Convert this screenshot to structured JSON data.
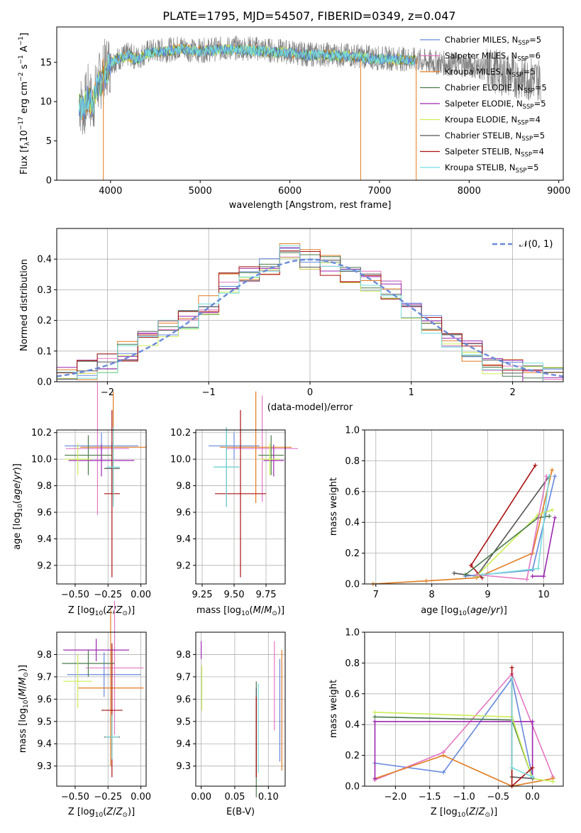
{
  "title": "PLATE=1795, MJD=54507, FIBERID=0349, z=0.047",
  "colors": [
    "#6688dd",
    "#e377c2",
    "#e07b20",
    "#4a7a4a",
    "#9b27af",
    "#ccee55",
    "#555555",
    "#aa1111",
    "#77dddd"
  ],
  "legend": [
    {
      "name": "Chabrier MILES, N",
      "sub": "SSP",
      "val": "=5"
    },
    {
      "name": "Salpeter MILES, N",
      "sub": "SSP",
      "val": "=6"
    },
    {
      "name": "Kroupa MILES, N",
      "sub": "SSP",
      "val": "=5"
    },
    {
      "name": "Chabrier ELODIE, N",
      "sub": "SSP",
      "val": "=5"
    },
    {
      "name": "Salpeter ELODIE, N",
      "sub": "SSP",
      "val": "=5"
    },
    {
      "name": "Kroupa ELODIE, N",
      "sub": "SSP",
      "val": "=4"
    },
    {
      "name": "Chabrier STELIB, N",
      "sub": "SSP",
      "val": "=5"
    },
    {
      "name": "Salpeter STELIB, N",
      "sub": "SSP",
      "val": "=4"
    },
    {
      "name": "Kroupa STELIB, N",
      "sub": "SSP",
      "val": "=5"
    }
  ],
  "chart_data": [
    {
      "id": "spectrum",
      "type": "line",
      "xlabel": "wavelength [Angstrom, rest frame]",
      "ylabel": "Flux [f_λ10^-17 erg cm^-2 s^-1 A^-1]",
      "xlim": [
        3400,
        9050
      ],
      "ylim": [
        0,
        19.5
      ],
      "xticks": [
        "4000",
        "5000",
        "6000",
        "7000",
        "8000",
        "9000"
      ],
      "yticks": [
        "0",
        "5",
        "10",
        "15"
      ],
      "series": [
        {
          "name": "data",
          "color": "#808080",
          "x": [
            3650,
            3700,
            3750,
            3800,
            3850,
            3900,
            3950,
            4000,
            4100,
            4200,
            4300,
            4400,
            4500,
            4600,
            4700,
            4800,
            4900,
            5000,
            5200,
            5400,
            5600,
            5800,
            6000,
            6200,
            6400,
            6600,
            6800,
            7000,
            7200,
            7400,
            7600,
            7800,
            8000,
            8200,
            8400,
            8600,
            8800
          ],
          "y": [
            10,
            9,
            11,
            9.5,
            12,
            13,
            14.5,
            15,
            15.5,
            16,
            15.5,
            16.3,
            16.5,
            16.5,
            16.7,
            17,
            16.5,
            16.5,
            16.7,
            16.8,
            16.8,
            16.5,
            16.3,
            16.0,
            16.0,
            15.9,
            15.8,
            15.5,
            15.5,
            15.3,
            15.0,
            14.8,
            14.6,
            14.2,
            13.5,
            13.0,
            12.8
          ]
        },
        {
          "name": "model",
          "color": "#77dddd",
          "x": [
            3650,
            3700,
            3750,
            3800,
            3850,
            3900,
            3950,
            4000,
            4100,
            4200,
            4300,
            4400,
            4500,
            4600,
            4700,
            4800,
            4900,
            5000,
            5200,
            5400,
            5600,
            5800,
            6000,
            6200,
            6400,
            6600,
            6800,
            7000,
            7200,
            7400
          ],
          "y": [
            9.5,
            9,
            10.5,
            9.5,
            12,
            12.5,
            13.5,
            15,
            15.5,
            15.8,
            15.3,
            16.2,
            16.3,
            16.4,
            16.6,
            16.8,
            16.4,
            16.4,
            16.6,
            16.6,
            16.5,
            16.3,
            16.2,
            15.9,
            15.9,
            15.8,
            15.6,
            15.4,
            15.4,
            15.2
          ]
        }
      ]
    },
    {
      "id": "residuals",
      "type": "area",
      "xlabel": "(data-model)/error",
      "ylabel": "Normed distribution",
      "xlim": [
        -2.5,
        2.5
      ],
      "ylim": [
        0,
        0.5
      ],
      "xticks": [
        "-2",
        "-1",
        "0",
        "1",
        "2"
      ],
      "yticks": [
        "0.0",
        "0.1",
        "0.2",
        "0.3",
        "0.4"
      ],
      "legend": "𝒩(0, 1)",
      "bins": [
        -2.5,
        -2.3,
        -2.1,
        -1.9,
        -1.7,
        -1.5,
        -1.3,
        -1.1,
        -0.9,
        -0.7,
        -0.5,
        -0.3,
        -0.1,
        0.1,
        0.3,
        0.5,
        0.7,
        0.9,
        1.1,
        1.3,
        1.5,
        1.7,
        1.9,
        2.1,
        2.3,
        2.5
      ],
      "hist": [
        0.02,
        0.04,
        0.06,
        0.1,
        0.14,
        0.17,
        0.2,
        0.25,
        0.32,
        0.36,
        0.37,
        0.42,
        0.4,
        0.38,
        0.35,
        0.33,
        0.3,
        0.24,
        0.19,
        0.14,
        0.1,
        0.06,
        0.04,
        0.03,
        0.02
      ]
    },
    {
      "id": "age-vs-Z",
      "type": "scatter",
      "xlabel": "Z [log10(Z/Z⊙)]",
      "ylabel": "age [log10(age/yr)]",
      "xlim": [
        -0.64,
        0.04
      ],
      "ylim": [
        9.06,
        10.22
      ],
      "xticks": [
        "-0.50",
        "-0.25",
        "0.00"
      ],
      "yticks": [
        "9.2",
        "9.4",
        "9.6",
        "9.8",
        "10.0",
        "10.2"
      ],
      "points": [
        {
          "x": -0.3,
          "y": 10.1,
          "xerr": 0.28,
          "yerr": 0.1,
          "c": 0
        },
        {
          "x": -0.33,
          "y": 10.08,
          "xerr": 0.24,
          "yerr": 0.5,
          "c": 1
        },
        {
          "x": -0.21,
          "y": 10.09,
          "xerr": 0.25,
          "yerr": 0.42,
          "c": 2
        },
        {
          "x": -0.4,
          "y": 10.03,
          "xerr": 0.18,
          "yerr": 0.15,
          "c": 3
        },
        {
          "x": -0.3,
          "y": 9.99,
          "xerr": 0.25,
          "yerr": 0.12,
          "c": 4
        },
        {
          "x": -0.48,
          "y": 10.0,
          "xerr": 0.1,
          "yerr": 0.12,
          "c": 5
        },
        {
          "x": -0.22,
          "y": 9.93,
          "xerr": 0.06,
          "yerr": 0.2,
          "c": 6
        },
        {
          "x": -0.22,
          "y": 9.74,
          "xerr": 0.06,
          "yerr": 0.63,
          "c": 7
        },
        {
          "x": -0.21,
          "y": 9.94,
          "xerr": 0.05,
          "yerr": 0.3,
          "c": 8
        }
      ]
    },
    {
      "id": "age-vs-mass",
      "type": "scatter",
      "xlabel": "mass [log10(M/M⊙)]",
      "ylabel": "",
      "xlim": [
        9.2,
        9.9
      ],
      "ylim": [
        9.06,
        10.22
      ],
      "xticks": [
        "9.25",
        "9.50",
        "9.75"
      ],
      "yticks": [
        "9.2",
        "9.4",
        "9.6",
        "9.8",
        "10.0",
        "10.2"
      ],
      "points": [
        {
          "x": 9.5,
          "y": 10.1,
          "xerr": 0.2,
          "yerr": 0.1,
          "c": 0
        },
        {
          "x": 9.72,
          "y": 10.08,
          "xerr": 0.28,
          "yerr": 0.4,
          "c": 1
        },
        {
          "x": 9.67,
          "y": 10.09,
          "xerr": 0.28,
          "yerr": 0.42,
          "c": 2
        },
        {
          "x": 9.79,
          "y": 10.03,
          "xerr": 0.1,
          "yerr": 0.15,
          "c": 3
        },
        {
          "x": 9.81,
          "y": 9.99,
          "xerr": 0.08,
          "yerr": 0.12,
          "c": 4
        },
        {
          "x": 9.78,
          "y": 10.0,
          "xerr": 0.08,
          "yerr": 0.12,
          "c": 5
        },
        {
          "x": 9.44,
          "y": 9.94,
          "xerr": 0.1,
          "yerr": 0.3,
          "c": 6
        },
        {
          "x": 9.55,
          "y": 9.74,
          "xerr": 0.2,
          "yerr": 0.63,
          "c": 7
        },
        {
          "x": 9.44,
          "y": 9.94,
          "xerr": 0.1,
          "yerr": 0.3,
          "c": 8
        }
      ]
    },
    {
      "id": "massweight-vs-age",
      "type": "line",
      "xlabel": "age [log10(age/yr)]",
      "ylabel": "mass weight",
      "xlim": [
        6.8,
        10.35
      ],
      "ylim": [
        0,
        1
      ],
      "xticks": [
        "7",
        "8",
        "9",
        "10"
      ],
      "yticks": [
        "0.0",
        "0.2",
        "0.4",
        "0.6",
        "0.8",
        "1.0"
      ],
      "series": [
        {
          "c": 2,
          "x": [
            6.95,
            7.9,
            8.8,
            9.8,
            10.15
          ],
          "y": [
            0.0,
            0.02,
            0.04,
            0.2,
            0.74
          ]
        },
        {
          "c": 7,
          "x": [
            8.9,
            8.7,
            9.85
          ],
          "y": [
            0.04,
            0.12,
            0.77
          ]
        },
        {
          "c": 6,
          "x": [
            8.4,
            8.8,
            10.1
          ],
          "y": [
            0.07,
            0.05,
            0.7
          ]
        },
        {
          "c": 0,
          "x": [
            8.6,
            9.8,
            10.2
          ],
          "y": [
            0.05,
            0.09,
            0.7
          ]
        },
        {
          "c": 5,
          "x": [
            8.8,
            9.9,
            10.15
          ],
          "y": [
            0.05,
            0.45,
            0.48
          ]
        },
        {
          "c": 3,
          "x": [
            8.6,
            9.9,
            10.1
          ],
          "y": [
            0.06,
            0.43,
            0.44
          ]
        },
        {
          "c": 4,
          "x": [
            9.8,
            10.0,
            10.2
          ],
          "y": [
            0.05,
            0.05,
            0.43
          ]
        },
        {
          "c": 1,
          "x": [
            8.8,
            9.7,
            10.05
          ],
          "y": [
            0.06,
            0.03,
            0.7
          ]
        },
        {
          "c": 8,
          "x": [
            8.9,
            9.9,
            10.1
          ],
          "y": [
            0.06,
            0.1,
            0.7
          ]
        }
      ]
    },
    {
      "id": "mass-vs-Z",
      "type": "scatter",
      "xlabel": "Z [log10(Z/Z⊙)]",
      "ylabel": "mass [log10(M/M⊙)]",
      "xlim": [
        -0.64,
        0.04
      ],
      "ylim": [
        9.21,
        9.9
      ],
      "xticks": [
        "-0.50",
        "-0.25",
        "0.00"
      ],
      "yticks": [
        "9.3",
        "9.4",
        "9.5",
        "9.6",
        "9.7",
        "9.8"
      ],
      "points": [
        {
          "x": -0.28,
          "y": 9.71,
          "xerr": 0.28,
          "yerr": 0.1,
          "c": 0
        },
        {
          "x": -0.2,
          "y": 9.74,
          "xerr": 0.22,
          "yerr": 0.3,
          "c": 1
        },
        {
          "x": -0.23,
          "y": 9.65,
          "xerr": 0.25,
          "yerr": 0.35,
          "c": 2
        },
        {
          "x": -0.4,
          "y": 9.76,
          "xerr": 0.2,
          "yerr": 0.06,
          "c": 3
        },
        {
          "x": -0.34,
          "y": 9.82,
          "xerr": 0.25,
          "yerr": 0.05,
          "c": 4
        },
        {
          "x": -0.48,
          "y": 9.68,
          "xerr": 0.11,
          "yerr": 0.12,
          "c": 5
        },
        {
          "x": -0.22,
          "y": 9.43,
          "xerr": 0.06,
          "yerr": 0.1,
          "c": 6
        },
        {
          "x": -0.22,
          "y": 9.55,
          "xerr": 0.08,
          "yerr": 0.3,
          "c": 7
        },
        {
          "x": -0.22,
          "y": 9.43,
          "xerr": 0.05,
          "yerr": 0.1,
          "c": 8
        }
      ]
    },
    {
      "id": "mass-vs-EBV",
      "type": "scatter",
      "xlabel": "E(B-V)",
      "ylabel": "",
      "xlim": [
        -0.008,
        0.125
      ],
      "ylim": [
        9.21,
        9.9
      ],
      "xticks": [
        "0.00",
        "0.05",
        "0.10"
      ],
      "yticks": [
        "9.3",
        "9.4",
        "9.5",
        "9.6",
        "9.7",
        "9.8"
      ],
      "points": [
        {
          "x": 0.117,
          "y": 9.55,
          "yerr": 0.23,
          "c": 0
        },
        {
          "x": 0.109,
          "y": 9.66,
          "yerr": 0.2,
          "c": 1
        },
        {
          "x": 0.12,
          "y": 9.55,
          "yerr": 0.27,
          "c": 2
        },
        {
          "x": 0.082,
          "y": 9.42,
          "yerr": 0.26,
          "c": 3
        },
        {
          "x": 0.0,
          "y": 9.82,
          "yerr": 0.04,
          "c": 4
        },
        {
          "x": 0.001,
          "y": 9.65,
          "yerr": 0.1,
          "c": 5
        },
        {
          "x": 0.082,
          "y": 9.45,
          "yerr": 0.2,
          "c": 6
        },
        {
          "x": 0.082,
          "y": 9.43,
          "yerr": 0.18,
          "c": 7
        },
        {
          "x": 0.085,
          "y": 9.47,
          "yerr": 0.2,
          "c": 8
        }
      ]
    },
    {
      "id": "massweight-vs-Z",
      "type": "line",
      "xlabel": "Z [log10(Z/Z⊙)]",
      "ylabel": "mass weight",
      "xlim": [
        -2.45,
        0.45
      ],
      "ylim": [
        0,
        1
      ],
      "xticks": [
        "-2.0",
        "-1.5",
        "-1.0",
        "-0.5",
        "0.0"
      ],
      "yticks": [
        "0.0",
        "0.2",
        "0.4",
        "0.6",
        "0.8",
        "1.0"
      ],
      "series": [
        {
          "c": 0,
          "x": [
            -2.3,
            -1.3,
            -0.3,
            0.0
          ],
          "y": [
            0.15,
            0.09,
            0.7,
            0.06
          ]
        },
        {
          "c": 1,
          "x": [
            -2.3,
            -1.3,
            -0.3,
            0.3
          ],
          "y": [
            0.04,
            0.22,
            0.73,
            0.06
          ]
        },
        {
          "c": 2,
          "x": [
            -2.3,
            -1.3,
            -0.3,
            0.3
          ],
          "y": [
            0.05,
            0.2,
            0.0,
            0.05
          ]
        },
        {
          "c": 3,
          "x": [
            -2.3,
            -0.3,
            0.0
          ],
          "y": [
            0.45,
            0.43,
            0.05
          ]
        },
        {
          "c": 4,
          "x": [
            -2.3,
            -2.3,
            0.0,
            0.0
          ],
          "y": [
            0.05,
            0.42,
            0.42,
            0.05
          ]
        },
        {
          "c": 5,
          "x": [
            -2.3,
            -0.3,
            0.0,
            0.3
          ],
          "y": [
            0.48,
            0.45,
            0.05,
            0.03
          ]
        },
        {
          "c": 6,
          "x": [
            -0.3,
            -0.3,
            0.0
          ],
          "y": [
            0.7,
            0.06,
            0.05
          ]
        },
        {
          "c": 7,
          "x": [
            -0.3,
            -0.3,
            0.0
          ],
          "y": [
            0.77,
            0.0,
            0.12
          ]
        },
        {
          "c": 8,
          "x": [
            -0.3,
            -0.3,
            0.0
          ],
          "y": [
            0.7,
            0.12,
            0.06
          ]
        }
      ]
    }
  ]
}
